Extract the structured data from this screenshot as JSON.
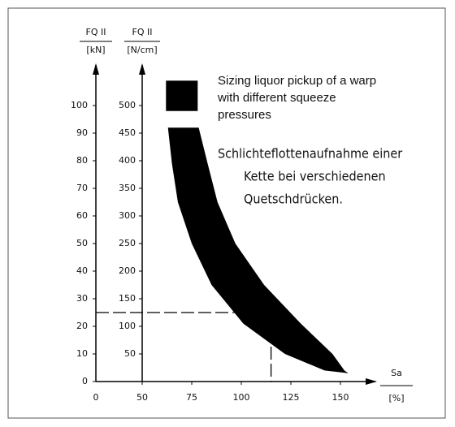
{
  "chart_data": {
    "type": "band",
    "title_lines": [
      "Sizing liquor pickup of a warp",
      "with different squeeze",
      "pressures"
    ],
    "subtitle_lines": [
      "Schlichteflottenaufnahme einer",
      "Kette bei verschiedenen",
      "Quetschdrücken."
    ],
    "y_label": "FQ II",
    "y_unit": "[kN]",
    "y2_label": "FQ II",
    "y2_unit": "[N/cm]",
    "x_label": "Sa",
    "x_unit": "[%]",
    "xlim": [
      50,
      165
    ],
    "xticks": [
      50,
      75,
      100,
      125,
      150
    ],
    "x_break_tick": 0,
    "ylim": [
      0,
      115
    ],
    "yticks": [
      0,
      10,
      20,
      30,
      40,
      50,
      60,
      70,
      80,
      90,
      100
    ],
    "y2lim": [
      0,
      575
    ],
    "y2ticks": [
      50,
      100,
      150,
      200,
      250,
      300,
      350,
      400,
      450,
      500
    ],
    "color": "#000000",
    "band": {
      "y": [
        109,
        98,
        null,
        92,
        79,
        65,
        50,
        35,
        21,
        10,
        4,
        3
      ],
      "x_low": [
        62,
        62,
        null,
        63,
        65,
        68,
        75,
        85,
        101,
        122,
        142,
        154
      ],
      "x_high": [
        78,
        78,
        null,
        78.5,
        83,
        88,
        97,
        111.5,
        130,
        146,
        152,
        154
      ]
    },
    "reference": {
      "x": 115,
      "y": 25
    }
  }
}
